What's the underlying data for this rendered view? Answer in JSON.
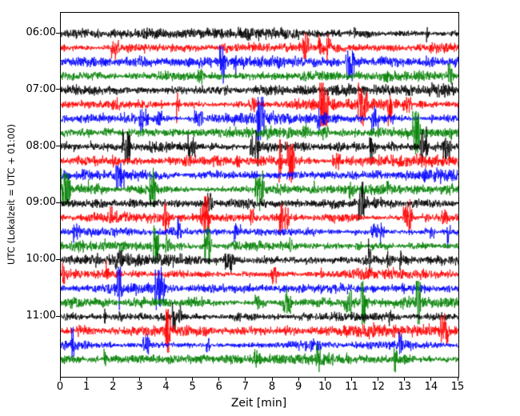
{
  "axes": {
    "xlabel": "Zeit  [min]",
    "ylabel": "UTC (Lokalzeit = UTC + 01:00)",
    "x_tick_labels": [
      "0",
      "1",
      "2",
      "3",
      "4",
      "5",
      "6",
      "7",
      "8",
      "9",
      "10",
      "11",
      "12",
      "13",
      "14",
      "15"
    ],
    "y_tick_labels": [
      "06:00",
      "07:00",
      "08:00",
      "09:00",
      "10:00",
      "11:00"
    ]
  },
  "chart_data": {
    "type": "line",
    "subtype": "helicorder-seismogram",
    "title": "",
    "xlabel": "Zeit  [min]",
    "ylabel": "UTC (Lokalzeit = UTC + 01:00)",
    "x_range_minutes": [
      0,
      15
    ],
    "minutes_per_row": 15,
    "grid": false,
    "legend": "none",
    "trace_color_cycle": [
      "#000000",
      "#ff0000",
      "#0000ff",
      "#008000"
    ],
    "content_description": "24 stacked rows of continuous high-frequency seismic background noise with occasional burst spikes; amplitudes are random noise with no labeled numeric scale",
    "rows": [
      {
        "start": "06:00",
        "color": "#000000"
      },
      {
        "start": "06:15",
        "color": "#ff0000"
      },
      {
        "start": "06:30",
        "color": "#0000ff"
      },
      {
        "start": "06:45",
        "color": "#008000"
      },
      {
        "start": "07:00",
        "color": "#000000"
      },
      {
        "start": "07:15",
        "color": "#ff0000"
      },
      {
        "start": "07:30",
        "color": "#0000ff"
      },
      {
        "start": "07:45",
        "color": "#008000"
      },
      {
        "start": "08:00",
        "color": "#000000"
      },
      {
        "start": "08:15",
        "color": "#ff0000"
      },
      {
        "start": "08:30",
        "color": "#0000ff"
      },
      {
        "start": "08:45",
        "color": "#008000"
      },
      {
        "start": "09:00",
        "color": "#000000"
      },
      {
        "start": "09:15",
        "color": "#ff0000"
      },
      {
        "start": "09:30",
        "color": "#0000ff"
      },
      {
        "start": "09:45",
        "color": "#008000"
      },
      {
        "start": "10:00",
        "color": "#000000"
      },
      {
        "start": "10:15",
        "color": "#ff0000"
      },
      {
        "start": "10:30",
        "color": "#0000ff"
      },
      {
        "start": "10:45",
        "color": "#008000"
      },
      {
        "start": "11:00",
        "color": "#000000"
      },
      {
        "start": "11:15",
        "color": "#ff0000"
      },
      {
        "start": "11:30",
        "color": "#0000ff"
      },
      {
        "start": "11:45",
        "color": "#008000"
      }
    ]
  }
}
